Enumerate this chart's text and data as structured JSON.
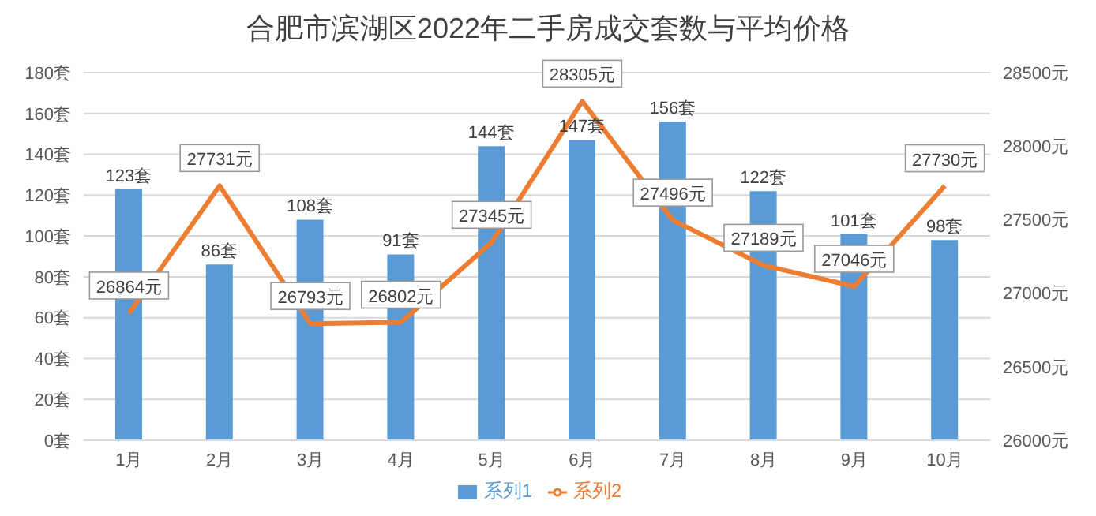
{
  "chart_data": {
    "type": "bar",
    "title": "合肥市滨湖区2022年二手房成交套数与平均价格",
    "categories": [
      "1月",
      "2月",
      "3月",
      "4月",
      "5月",
      "6月",
      "7月",
      "8月",
      "9月",
      "10月"
    ],
    "series": [
      {
        "name": "系列1",
        "color": "#5b9bd5",
        "values": [
          123,
          86,
          108,
          91,
          144,
          147,
          156,
          122,
          101,
          98
        ],
        "value_labels": [
          "123套",
          "86套",
          "108套",
          "91套",
          "144套",
          "147套",
          "156套",
          "122套",
          "101套",
          "98套"
        ]
      },
      {
        "name": "系列2",
        "type": "line",
        "axis": "y2",
        "color": "#ed7d31",
        "values": [
          26864,
          27731,
          26793,
          26802,
          27345,
          28305,
          27496,
          27189,
          27046,
          27730
        ],
        "value_labels": [
          "26864元",
          "27731元",
          "26793元",
          "26802元",
          "27345元",
          "28305元",
          "27496元",
          "27189元",
          "27046元",
          "27730元"
        ]
      }
    ],
    "ylim": [
      0,
      180
    ],
    "yticks": [
      {
        "value": 0,
        "label": "0套"
      },
      {
        "value": 20,
        "label": "20套"
      },
      {
        "value": 40,
        "label": "40套"
      },
      {
        "value": 60,
        "label": "60套"
      },
      {
        "value": 80,
        "label": "80套"
      },
      {
        "value": 100,
        "label": "100套"
      },
      {
        "value": 120,
        "label": "120套"
      },
      {
        "value": 140,
        "label": "140套"
      },
      {
        "value": 160,
        "label": "160套"
      },
      {
        "value": 180,
        "label": "180套"
      }
    ],
    "y2lim": [
      26000,
      28500
    ],
    "y2ticks": [
      {
        "value": 26000,
        "label": "26000元"
      },
      {
        "value": 26500,
        "label": "26500元"
      },
      {
        "value": 27000,
        "label": "27000元"
      },
      {
        "value": 27500,
        "label": "27500元"
      },
      {
        "value": 28000,
        "label": "28000元"
      },
      {
        "value": 28500,
        "label": "28500元"
      }
    ],
    "grid": "y",
    "legend": "bottom",
    "marker": "none",
    "line_style": "solid"
  }
}
